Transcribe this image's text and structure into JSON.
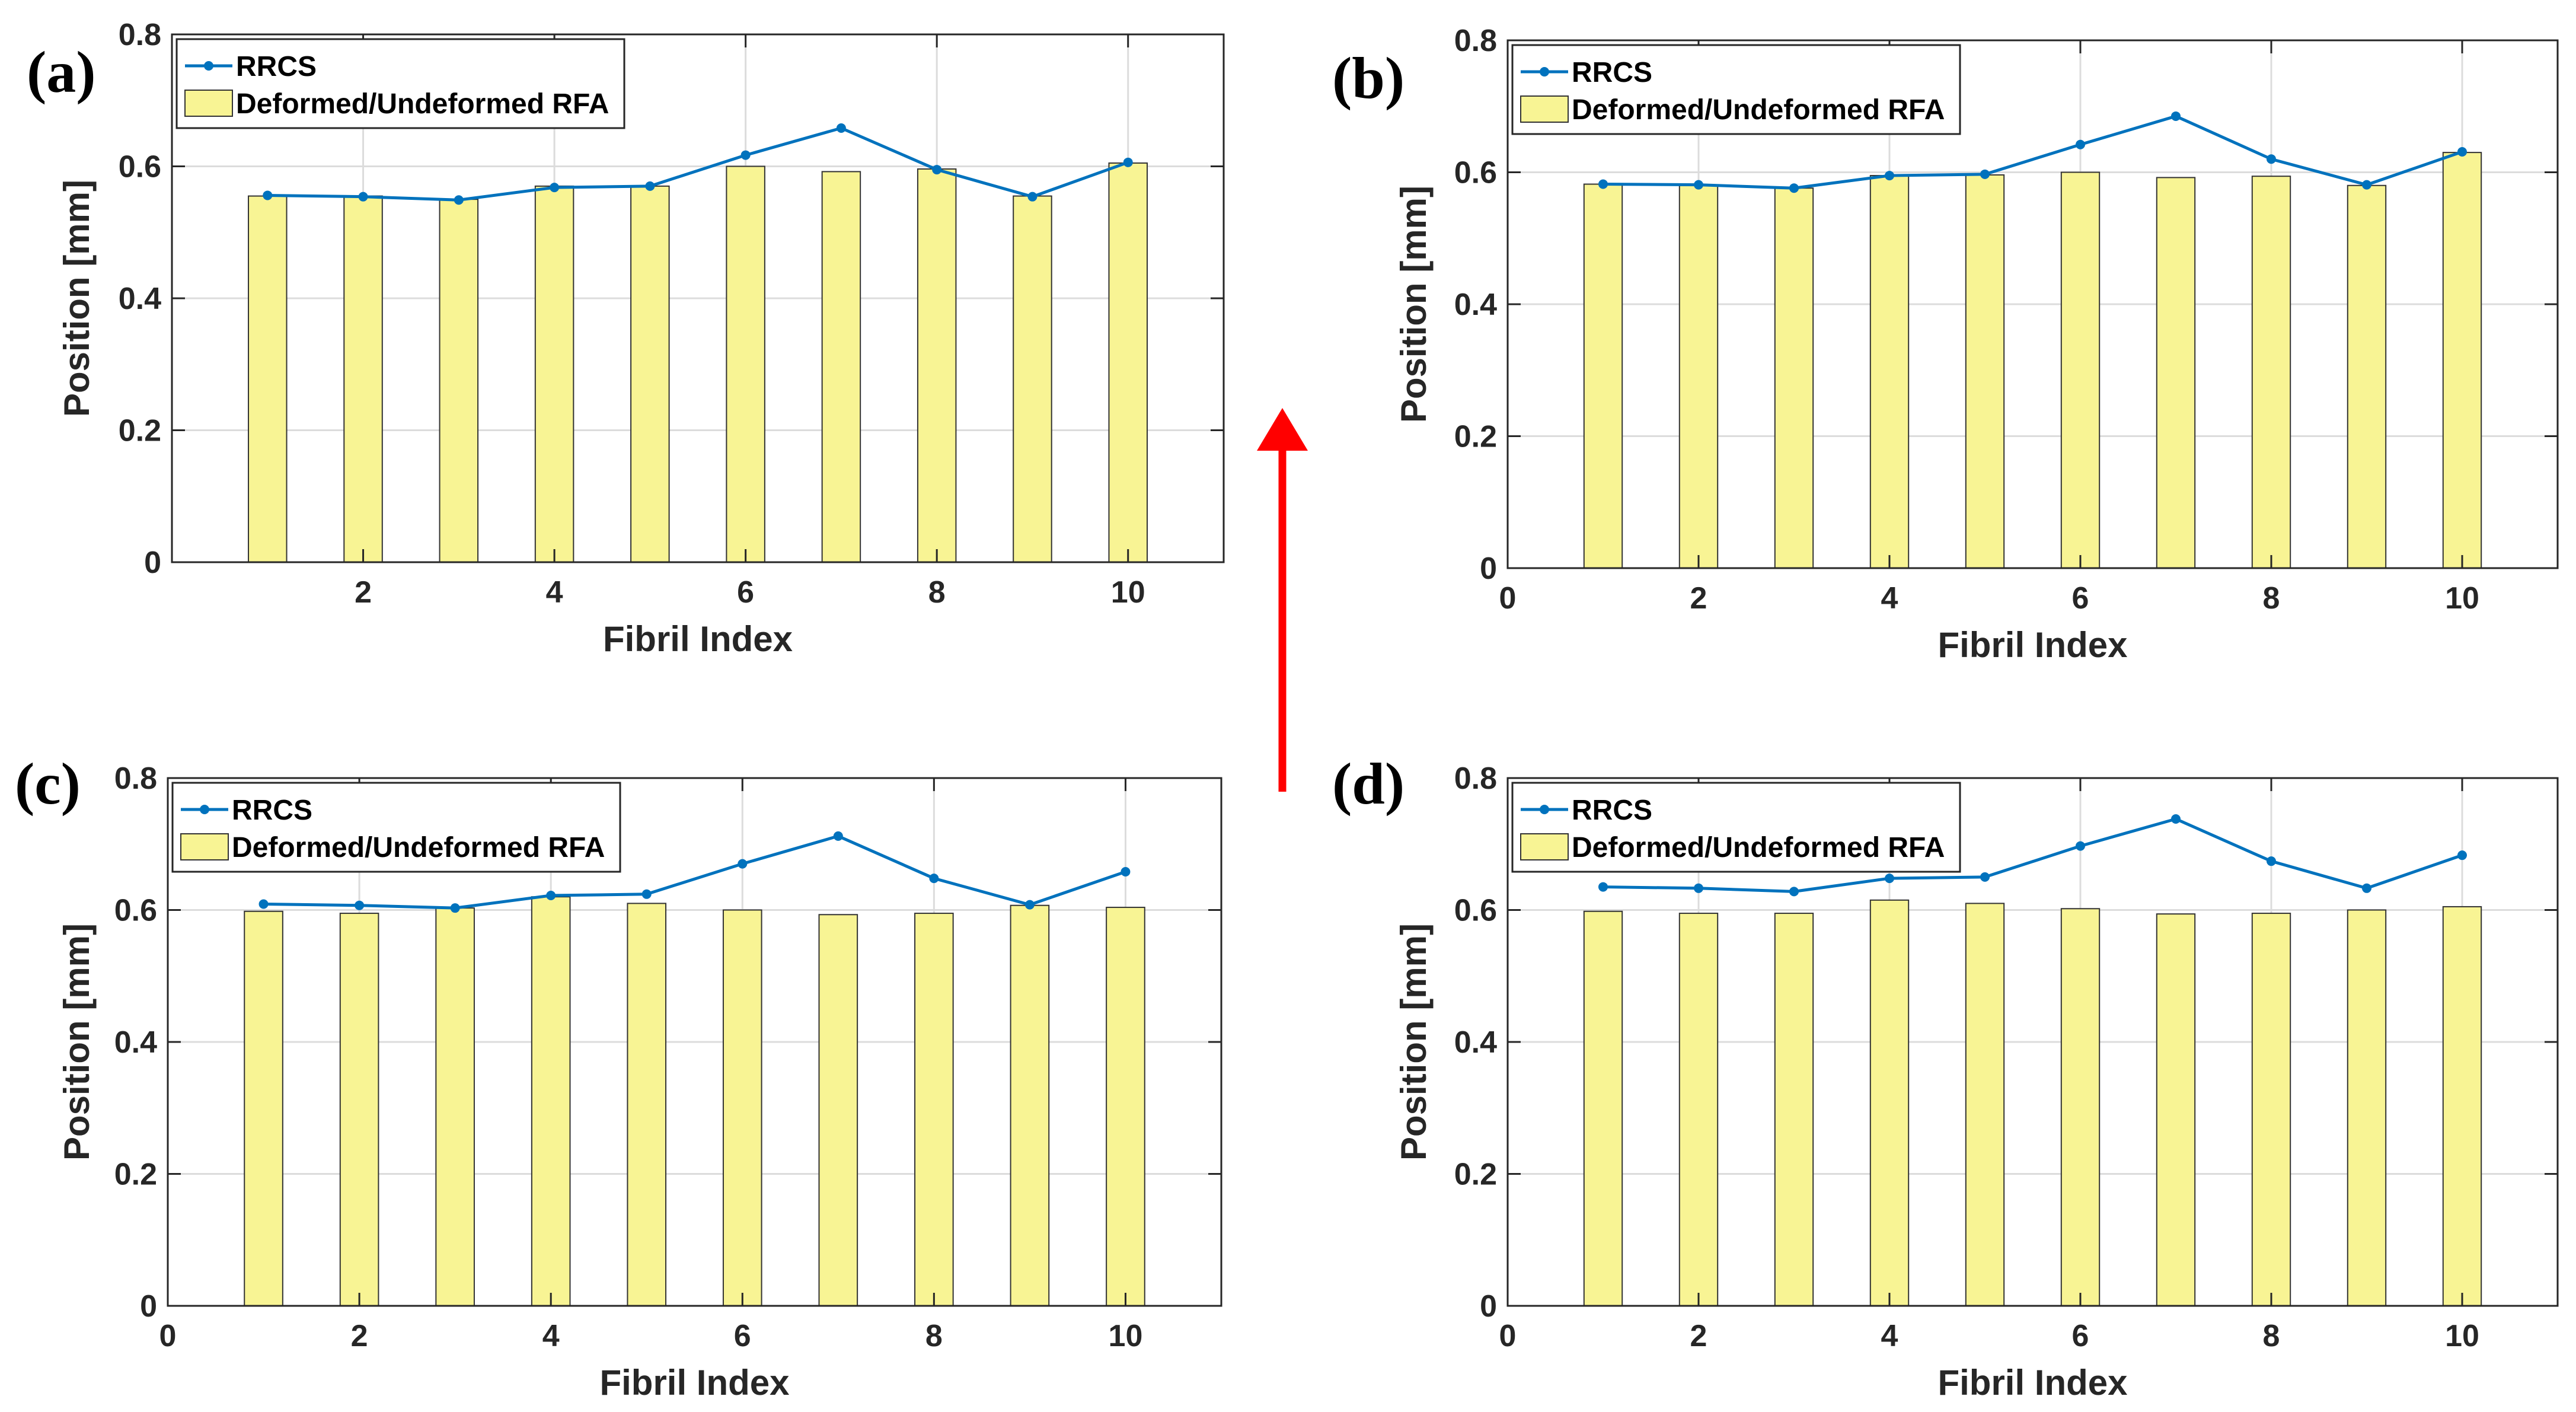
{
  "figure": {
    "arrow_color": "#ff0000",
    "bar_color": "#f8f494",
    "bar_edge_color": "#333333",
    "line_color": "#0072bd",
    "grid_color": "#dcdcdc"
  },
  "chart_data": [
    {
      "panel": "(a)",
      "type": "bar+line",
      "xlabel": "Fibril Index",
      "ylabel": "Position [mm]",
      "ylim": [
        0,
        0.8
      ],
      "xlim": [
        0,
        11
      ],
      "xticks": [
        "2",
        "4",
        "6",
        "8",
        "10"
      ],
      "yticks": [
        "0",
        "0.2",
        "0.4",
        "0.6",
        "0.8"
      ],
      "x": [
        1,
        2,
        3,
        4,
        5,
        6,
        7,
        8,
        9,
        10
      ],
      "grid": true,
      "legend": {
        "position": "top-left",
        "entries": [
          "RRCS",
          "Deformed/Undeformed RFA"
        ]
      },
      "series": [
        {
          "name": "Deformed/Undeformed RFA",
          "kind": "bar",
          "values": [
            0.555,
            0.555,
            0.55,
            0.57,
            0.57,
            0.6,
            0.592,
            0.596,
            0.555,
            0.605
          ]
        },
        {
          "name": "RRCS",
          "kind": "line",
          "values": [
            0.556,
            0.554,
            0.549,
            0.568,
            0.57,
            0.617,
            0.658,
            0.595,
            0.554,
            0.606
          ]
        }
      ]
    },
    {
      "panel": "(b)",
      "type": "bar+line",
      "xlabel": "Fibril Index",
      "ylabel": "Position [mm]",
      "ylim": [
        0,
        0.8
      ],
      "xlim": [
        0,
        11
      ],
      "xticks": [
        "0",
        "2",
        "4",
        "6",
        "8",
        "10"
      ],
      "yticks": [
        "0",
        "0.2",
        "0.4",
        "0.6",
        "0.8"
      ],
      "x": [
        1,
        2,
        3,
        4,
        5,
        6,
        7,
        8,
        9,
        10
      ],
      "grid": true,
      "legend": {
        "position": "top-left",
        "entries": [
          "RRCS",
          "Deformed/Undeformed RFA"
        ]
      },
      "series": [
        {
          "name": "Deformed/Undeformed RFA",
          "kind": "bar",
          "values": [
            0.582,
            0.58,
            0.576,
            0.595,
            0.596,
            0.6,
            0.592,
            0.594,
            0.58,
            0.63
          ]
        },
        {
          "name": "RRCS",
          "kind": "line",
          "values": [
            0.582,
            0.581,
            0.576,
            0.595,
            0.597,
            0.642,
            0.685,
            0.62,
            0.581,
            0.631
          ]
        }
      ]
    },
    {
      "panel": "(c)",
      "type": "bar+line",
      "xlabel": "Fibril Index",
      "ylabel": "Position [mm]",
      "ylim": [
        0,
        0.8
      ],
      "xlim": [
        0,
        11
      ],
      "xticks": [
        "0",
        "2",
        "4",
        "6",
        "8",
        "10"
      ],
      "yticks": [
        "0",
        "0.2",
        "0.4",
        "0.6",
        "0.8"
      ],
      "x": [
        1,
        2,
        3,
        4,
        5,
        6,
        7,
        8,
        9,
        10
      ],
      "grid": true,
      "legend": {
        "position": "top-left",
        "entries": [
          "RRCS",
          "Deformed/Undeformed RFA"
        ]
      },
      "series": [
        {
          "name": "Deformed/Undeformed RFA",
          "kind": "bar",
          "values": [
            0.598,
            0.595,
            0.603,
            0.62,
            0.61,
            0.6,
            0.593,
            0.595,
            0.607,
            0.604
          ]
        },
        {
          "name": "RRCS",
          "kind": "line",
          "values": [
            0.609,
            0.607,
            0.603,
            0.622,
            0.624,
            0.67,
            0.712,
            0.648,
            0.608,
            0.658
          ]
        }
      ]
    },
    {
      "panel": "(d)",
      "type": "bar+line",
      "xlabel": "Fibril Index",
      "ylabel": "Position [mm]",
      "ylim": [
        0,
        0.8
      ],
      "xlim": [
        0,
        11
      ],
      "xticks": [
        "0",
        "2",
        "4",
        "6",
        "8",
        "10"
      ],
      "yticks": [
        "0",
        "0.2",
        "0.4",
        "0.6",
        "0.8"
      ],
      "x": [
        1,
        2,
        3,
        4,
        5,
        6,
        7,
        8,
        9,
        10
      ],
      "grid": true,
      "legend": {
        "position": "top-left",
        "entries": [
          "RRCS",
          "Deformed/Undeformed RFA"
        ]
      },
      "series": [
        {
          "name": "Deformed/Undeformed RFA",
          "kind": "bar",
          "values": [
            0.598,
            0.595,
            0.595,
            0.615,
            0.61,
            0.602,
            0.594,
            0.595,
            0.6,
            0.605
          ]
        },
        {
          "name": "RRCS",
          "kind": "line",
          "values": [
            0.635,
            0.633,
            0.628,
            0.648,
            0.65,
            0.697,
            0.738,
            0.674,
            0.633,
            0.683
          ]
        }
      ]
    }
  ]
}
